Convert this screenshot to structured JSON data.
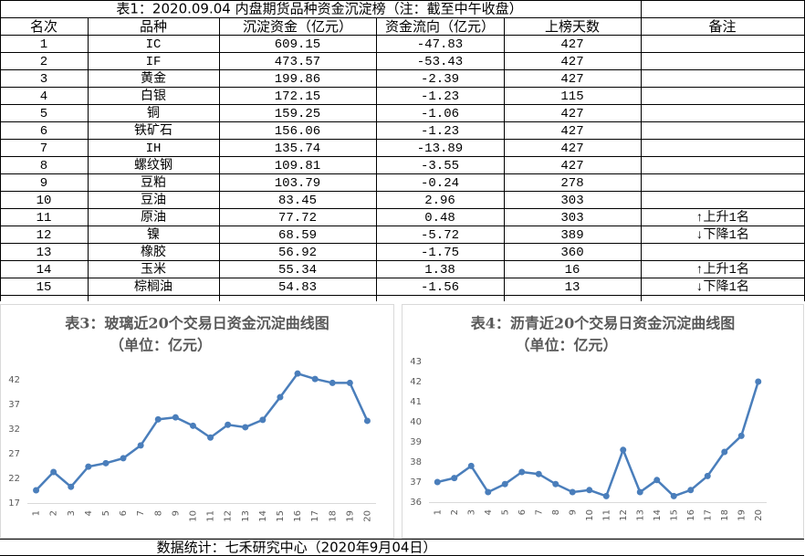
{
  "table": {
    "title": "表1：2020.09.04 内盘期货品种资金沉淀榜（注：截至中午收盘）",
    "headers": [
      "名次",
      "品种",
      "沉淀资金（亿元）",
      "资金流向（亿元）",
      "上榜天数",
      "备注"
    ],
    "rows": [
      [
        "1",
        "IC",
        "609.15",
        "-47.83",
        "427",
        null
      ],
      [
        "2",
        "IF",
        "473.57",
        "-53.43",
        "427",
        null
      ],
      [
        "3",
        "黄金",
        "199.86",
        "-2.39",
        "427",
        null
      ],
      [
        "4",
        "白银",
        "172.15",
        "-1.23",
        "115",
        null
      ],
      [
        "5",
        "铜",
        "159.25",
        "-1.06",
        "427",
        null
      ],
      [
        "6",
        "铁矿石",
        "156.06",
        "-1.23",
        "427",
        null
      ],
      [
        "7",
        "IH",
        "135.74",
        "-13.89",
        "427",
        null
      ],
      [
        "8",
        "螺纹钢",
        "109.81",
        "-3.55",
        "427",
        null
      ],
      [
        "9",
        "豆粕",
        "103.79",
        "-0.24",
        "278",
        null
      ],
      [
        "10",
        "豆油",
        "83.45",
        "2.96",
        "303",
        null
      ],
      [
        "11",
        "原油",
        "77.72",
        "0.48",
        "303",
        "↑上升1名"
      ],
      [
        "12",
        "镍",
        "68.59",
        "-5.72",
        "389",
        "↓下降1名"
      ],
      [
        "13",
        "橡胶",
        "56.92",
        "-1.75",
        "360",
        null
      ],
      [
        "14",
        "玉米",
        "55.34",
        "1.38",
        "16",
        "↑上升1名"
      ],
      [
        "15",
        "棕榈油",
        "54.83",
        "-1.56",
        "13",
        "↓下降1名"
      ]
    ]
  },
  "chart_data": [
    {
      "type": "line",
      "title": "表3：玻璃近20个交易日资金沉淀曲线图",
      "subtitle": "（单位：亿元）",
      "categories": [
        "1",
        "2",
        "3",
        "4",
        "5",
        "6",
        "7",
        "8",
        "9",
        "10",
        "11",
        "12",
        "13",
        "14",
        "15",
        "16",
        "17",
        "18",
        "19",
        "20"
      ],
      "values": [
        19.6,
        23.3,
        20.3,
        24.4,
        25.1,
        26.1,
        28.7,
        34.0,
        34.4,
        32.7,
        30.3,
        32.9,
        32.4,
        33.9,
        38.5,
        43.3,
        42.2,
        41.4,
        41.4,
        33.7
      ],
      "color": "#4a7ebb",
      "ylim": [
        17,
        45
      ],
      "yticks": [
        17,
        22,
        27,
        32,
        37,
        42
      ],
      "grid": false
    },
    {
      "type": "line",
      "title": "表4：沥青近20个交易日资金沉淀曲线图",
      "subtitle": "（单位：亿元）",
      "categories": [
        "1",
        "2",
        "3",
        "4",
        "5",
        "6",
        "7",
        "8",
        "9",
        "10",
        "11",
        "12",
        "13",
        "14",
        "15",
        "16",
        "17",
        "18",
        "19",
        "20"
      ],
      "values": [
        37.0,
        37.2,
        37.8,
        36.5,
        36.9,
        37.5,
        37.4,
        36.9,
        36.5,
        36.6,
        36.3,
        38.6,
        36.5,
        37.1,
        36.3,
        36.6,
        37.3,
        38.5,
        39.3,
        42.0
      ],
      "color": "#4a7ebb",
      "ylim": [
        36,
        43
      ],
      "yticks": [
        36,
        37,
        38,
        39,
        40,
        41,
        42,
        43
      ],
      "grid": false
    }
  ],
  "footer": "数据统计：七禾研究中心（2020年9月04日）"
}
